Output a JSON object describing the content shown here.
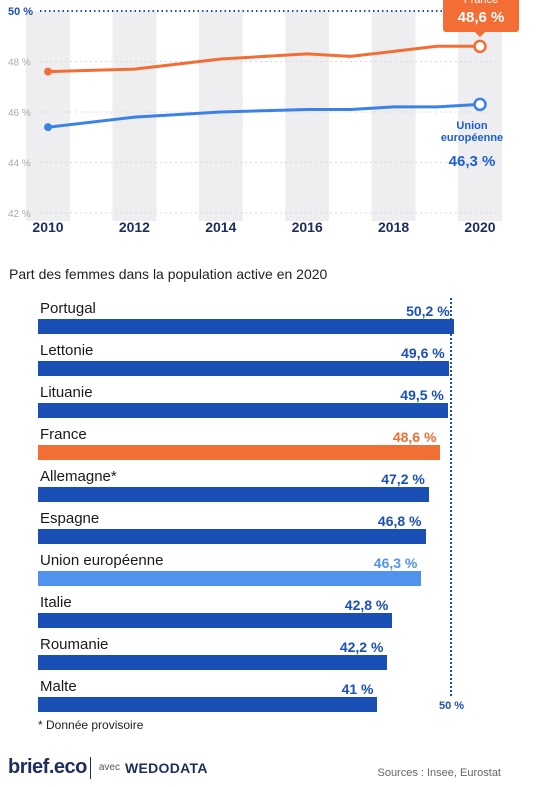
{
  "colors": {
    "france": "#f26e35",
    "eu": "#3b82e8",
    "eu_bar": "#4f93ef",
    "country": "#1a4fb5",
    "band": "#eeeef0",
    "grid": "#d9d9de",
    "ref": "#1f4fae"
  },
  "chart_data": [
    {
      "type": "line",
      "x": [
        2010,
        2012,
        2014,
        2016,
        2017,
        2018,
        2019,
        2020
      ],
      "xticks": [
        "2010",
        "2012",
        "2014",
        "2016",
        "2018",
        "2020"
      ],
      "yticks": [
        "42 %",
        "44 %",
        "46 %",
        "48 %",
        "50 %"
      ],
      "ylim": [
        42,
        50
      ],
      "xlim": [
        2010,
        2020
      ],
      "reference_line": {
        "y": 50,
        "label": "50 %"
      },
      "grid": true,
      "series": [
        {
          "name": "France",
          "values": [
            47.6,
            47.7,
            48.1,
            48.3,
            48.2,
            48.4,
            48.6,
            48.6
          ],
          "end_label": "48,6 %"
        },
        {
          "name": "Union européenne",
          "name_lines": [
            "Union",
            "européenne"
          ],
          "values": [
            45.4,
            45.8,
            46.0,
            46.1,
            46.1,
            46.2,
            46.2,
            46.3
          ],
          "end_label": "46,3 %"
        }
      ]
    },
    {
      "type": "bar",
      "title": "Part des femmes dans la population active en 2020",
      "categories": [
        "Portugal",
        "Lettonie",
        "Lituanie",
        "France",
        "Allemagne*",
        "Espagne",
        "Union européenne",
        "Italie",
        "Roumanie",
        "Malte"
      ],
      "values": [
        50.2,
        49.6,
        49.5,
        48.6,
        47.2,
        46.8,
        46.3,
        42.8,
        42.2,
        41
      ],
      "value_labels": [
        "50,2 %",
        "49,6 %",
        "49,5 %",
        "48,6 %",
        "47,2 %",
        "46,8 %",
        "46,3 %",
        "42,8 %",
        "42,2 %",
        "41 %"
      ],
      "highlight": {
        "France": "france",
        "Union européenne": "eu_bar"
      },
      "reference_line": {
        "value": 50,
        "label": "50 %"
      }
    }
  ],
  "footnote": "* Donnée provisoire",
  "brand": {
    "logo": "brief.eco",
    "with": "avec",
    "partner": "WEDODATA"
  },
  "sources": "Sources : Insee, Eurostat"
}
